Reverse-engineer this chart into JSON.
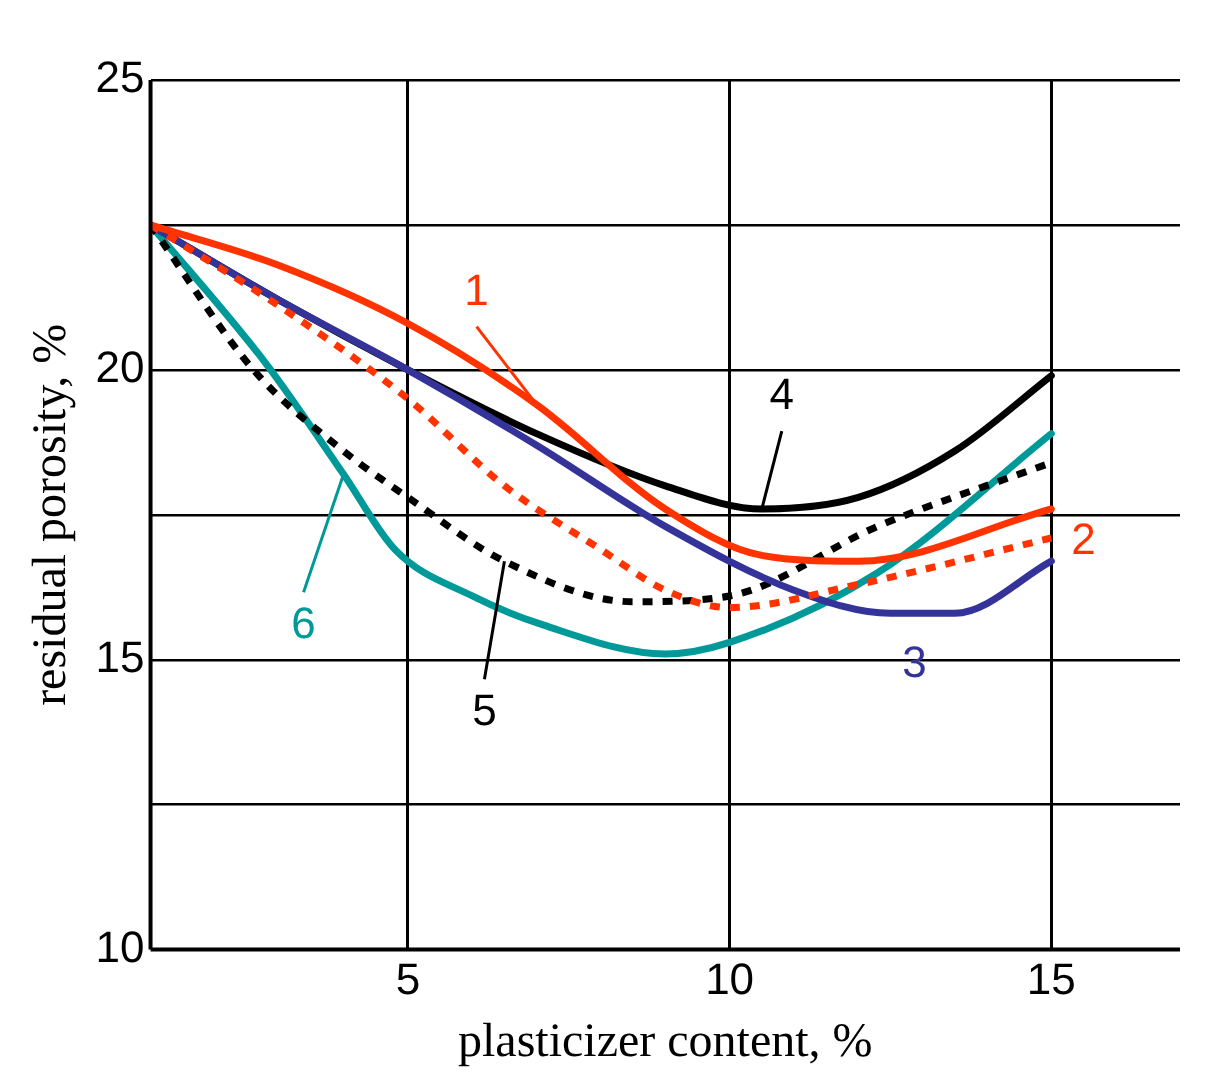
{
  "chart_data": {
    "type": "line",
    "xlabel": "plasticizer content, %",
    "ylabel": "residual porosity, %",
    "xlim": [
      1,
      17
    ],
    "xticks": [
      5,
      10,
      15
    ],
    "ylim": [
      10,
      25
    ],
    "yticks": [
      10,
      {
        "value": 12.5,
        "label": null
      },
      15,
      {
        "value": 17.5,
        "label": null
      },
      20,
      {
        "value": 22.5,
        "label": null
      },
      25
    ],
    "grid": true,
    "legend": false,
    "marker": "none",
    "series": [
      {
        "name": "1",
        "color": "#ff3300",
        "line_style": "solid",
        "x": [
          1,
          3,
          5,
          7,
          9,
          10.5,
          12,
          15
        ],
        "values": [
          22.5,
          21.8,
          20.8,
          19.4,
          17.6,
          16.8,
          16.7,
          17.6
        ]
      },
      {
        "name": "2",
        "color": "#ff3300",
        "line_style": "dotted",
        "x": [
          1,
          3,
          5,
          6.5,
          8,
          9,
          10,
          12,
          15
        ],
        "values": [
          22.5,
          21.1,
          19.5,
          18.0,
          16.9,
          16.2,
          15.9,
          16.3,
          17.1
        ]
      },
      {
        "name": "3",
        "color": "#333399",
        "line_style": "solid",
        "x": [
          1,
          3,
          5,
          7,
          9,
          11,
          12.5,
          13.5,
          15
        ],
        "values": [
          22.5,
          21.2,
          20,
          18.7,
          17.3,
          16.2,
          15.8,
          15.8,
          16.7
        ]
      },
      {
        "name": "4",
        "color": "#000000",
        "line_style": "solid",
        "x": [
          1,
          3,
          5,
          7,
          9,
          10.5,
          12,
          13.5,
          15
        ],
        "values": [
          22.5,
          21.2,
          20,
          18.9,
          18.0,
          17.6,
          17.8,
          18.6,
          19.9
        ]
      },
      {
        "name": "5",
        "color": "#000000",
        "line_style": "dotted",
        "x": [
          1,
          2.6,
          4,
          5,
          6.5,
          8.5,
          10,
          12.3,
          15
        ],
        "values": [
          22.5,
          20.0,
          18.6,
          17.8,
          16.7,
          16.0,
          16.1,
          17.3,
          18.4
        ]
      },
      {
        "name": "6",
        "color": "#009999",
        "line_style": "solid",
        "x": [
          1,
          2.8,
          4,
          4.8,
          6,
          7.1,
          9,
          10,
          12.3,
          15
        ],
        "values": [
          22.5,
          20.1,
          18.2,
          16.9,
          16.1,
          15.6,
          15.1,
          15.3,
          16.5,
          18.9
        ]
      }
    ]
  }
}
